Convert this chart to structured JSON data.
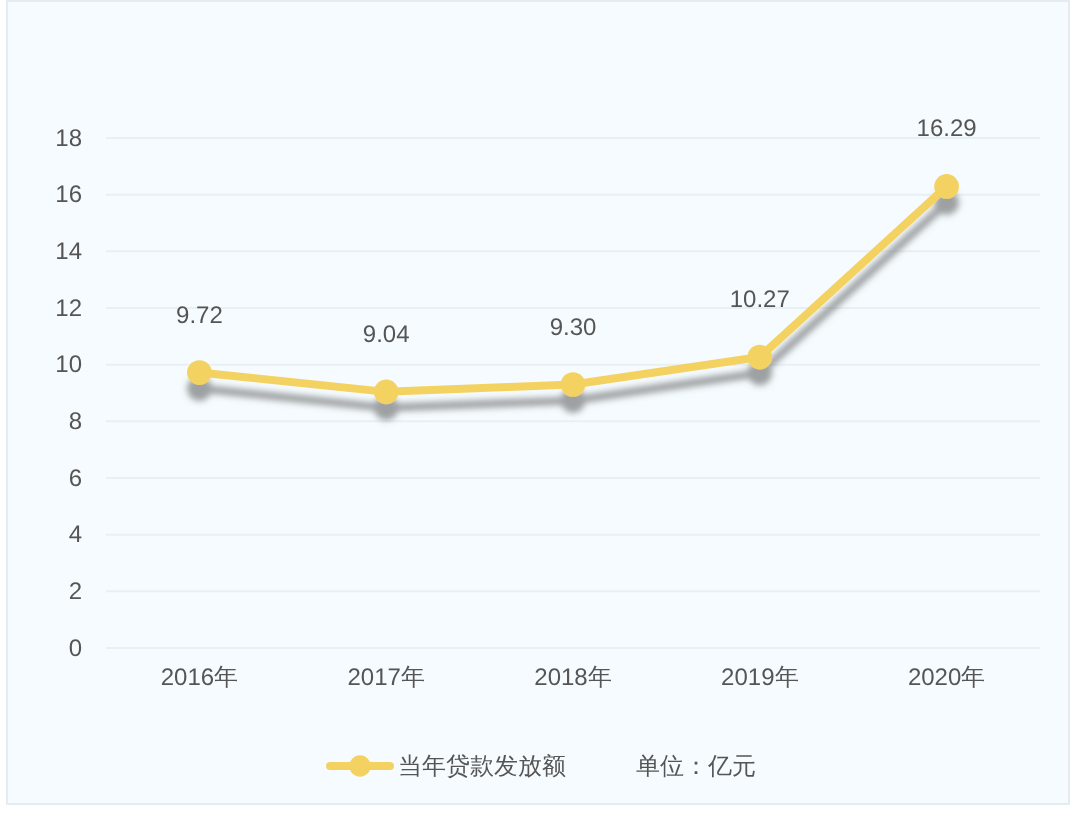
{
  "chart_data": {
    "type": "line",
    "categories": [
      "2016年",
      "2017年",
      "2018年",
      "2019年",
      "2020年"
    ],
    "series": [
      {
        "name": "当年贷款发放额",
        "color": "#f4d262",
        "values": [
          9.72,
          9.04,
          9.3,
          10.27,
          16.29
        ],
        "value_labels": [
          "9.72",
          "9.04",
          "9.30",
          "10.27",
          "16.29"
        ]
      }
    ],
    "ylim": [
      0,
      18
    ],
    "yticks": [
      0,
      2,
      4,
      6,
      8,
      10,
      12,
      14,
      16,
      18
    ],
    "grid": "y",
    "legend": "bottom",
    "marker": "circle",
    "line_style": "solid",
    "annotations": [
      "单位：亿元"
    ]
  }
}
